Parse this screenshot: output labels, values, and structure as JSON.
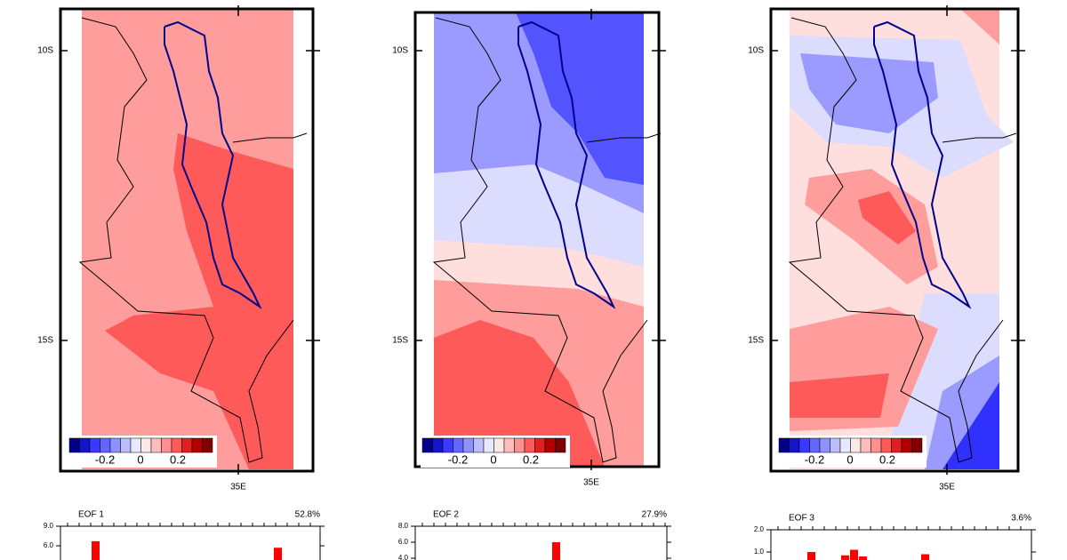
{
  "panels": [
    {
      "lat_labels": [
        "10S",
        "15S"
      ],
      "lon_label": "35E",
      "colorbar_labels": [
        "-0.2",
        "0",
        "0.2"
      ],
      "eof": {
        "title": "EOF 1",
        "variance": "52.8%",
        "yticks": [
          {
            "value": 9,
            "label": "9.0"
          },
          {
            "value": 6,
            "label": "6.0"
          }
        ],
        "values": [
          6.7,
          5.7
        ]
      }
    },
    {
      "lat_labels": [
        "10S",
        "15S"
      ],
      "lon_label": "35E",
      "colorbar_labels": [
        "-0.2",
        "0",
        "0.2"
      ],
      "eof": {
        "title": "EOF 2",
        "variance": "27.9%",
        "yticks": [
          {
            "value": 8,
            "label": "8.0"
          },
          {
            "value": 6,
            "label": "6.0"
          },
          {
            "value": 4,
            "label": "4.0"
          }
        ],
        "values": [
          6.0
        ]
      }
    },
    {
      "lat_labels": [
        "10S",
        "15S"
      ],
      "lon_label": "35E",
      "colorbar_labels": [
        "-0.2",
        "0",
        "0.2"
      ],
      "eof": {
        "title": "EOF 3",
        "variance": "3.6%",
        "yticks": [
          {
            "value": 2,
            "label": "2.0"
          },
          {
            "value": 1,
            "label": "1.0"
          }
        ],
        "values": [
          1.0,
          0.85,
          1.1,
          0.8,
          0.9
        ]
      }
    }
  ]
}
